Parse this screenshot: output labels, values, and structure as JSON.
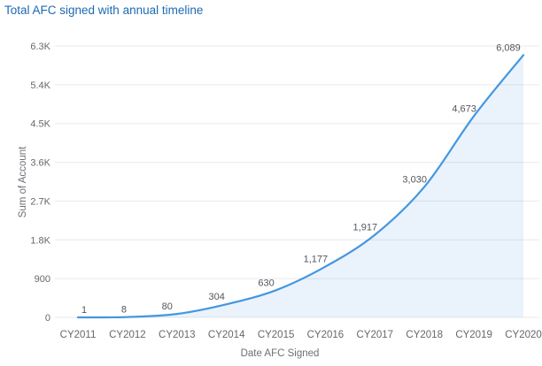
{
  "page": {
    "title": "Total AFC signed with annual timeline"
  },
  "colors": {
    "title_text": "#1b6ab3",
    "line": "#4397e0",
    "area_fill": "rgba(82,158,224,0.12)",
    "gridline": "#e6e9ed",
    "axis_text": "#64686d",
    "axis_title_text": "#6b7075",
    "data_label_text": "#52555a",
    "background": "#ffffff"
  },
  "chart_data": {
    "type": "area",
    "title": "Total AFC signed with annual timeline",
    "categories": [
      "CY2011",
      "CY2012",
      "CY2013",
      "CY2014",
      "CY2015",
      "CY2016",
      "CY2017",
      "CY2018",
      "CY2019",
      "CY2020"
    ],
    "values": [
      1,
      8,
      80,
      304,
      630,
      1177,
      1917,
      3030,
      4673,
      6089
    ],
    "data_labels": [
      "1",
      "8",
      "80",
      "304",
      "630",
      "1,177",
      "1,917",
      "3,030",
      "4,673",
      "6,089"
    ],
    "xlabel": "Date AFC Signed",
    "ylabel": "Sum of Account",
    "ylim": [
      0,
      6300
    ],
    "ytick_interval": 900,
    "ytick_labels": [
      "0",
      "900",
      "1.8K",
      "2.7K",
      "3.6K",
      "4.5K",
      "5.4K",
      "6.3K"
    ],
    "grid": "horizontal-only",
    "legend": "none",
    "x_axis_type": "category",
    "markers": "none"
  }
}
